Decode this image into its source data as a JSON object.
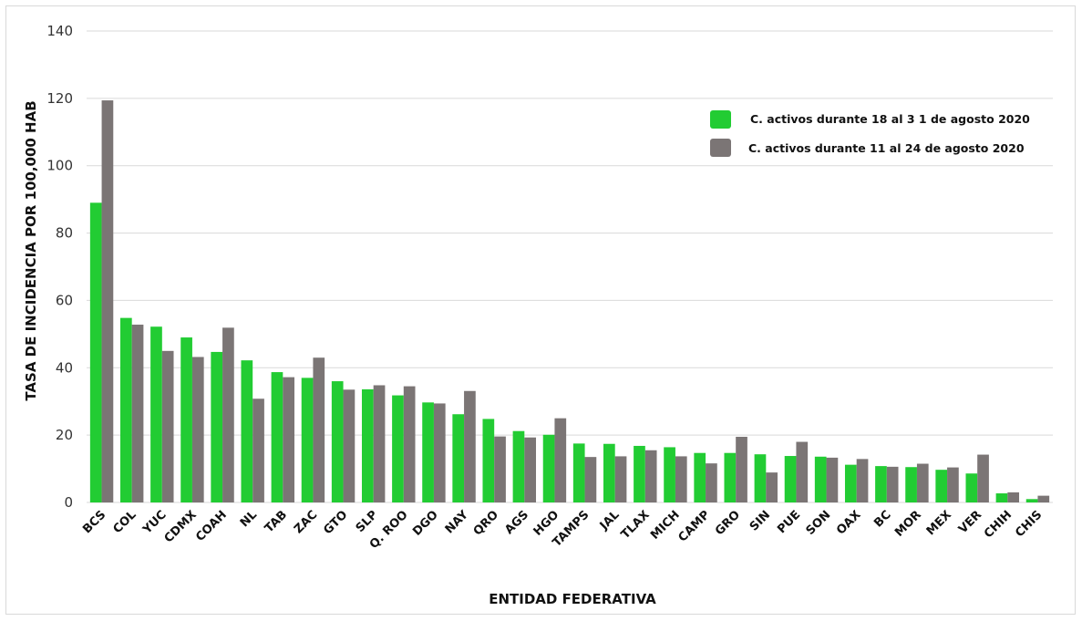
{
  "chart_data": {
    "type": "bar",
    "title": "",
    "xlabel": "ENTIDAD FEDERATIVA",
    "ylabel": "TASA DE INCIDENCIA  POR 100,000 HAB",
    "ylim": [
      0,
      140
    ],
    "yticks": [
      0,
      20,
      40,
      60,
      80,
      100,
      120,
      140
    ],
    "grid": true,
    "legend_position": "top-right",
    "categories": [
      "BCS",
      "COL",
      "YUC",
      "CDMX",
      "COAH",
      "NL",
      "TAB",
      "ZAC",
      "GTO",
      "SLP",
      "Q. ROO",
      "DGO",
      "NAY",
      "QRO",
      "AGS",
      "HGO",
      "TAMPS",
      "JAL",
      "TLAX",
      "MICH",
      "CAMP",
      "GRO",
      "SIN",
      "PUE",
      "SON",
      "OAX",
      "BC",
      "MOR",
      "MEX",
      "VER",
      "CHIH",
      "CHIS"
    ],
    "series": [
      {
        "name": "C. activos durante 18 al 3 1 de agosto 2020",
        "color": "#22cc33",
        "values": [
          89.0,
          54.8,
          52.2,
          49.0,
          44.7,
          42.2,
          38.7,
          37.0,
          36.0,
          33.6,
          31.8,
          29.7,
          26.2,
          24.8,
          21.2,
          20.1,
          17.5,
          17.4,
          16.8,
          16.4,
          14.7,
          14.7,
          14.3,
          13.8,
          13.6,
          11.2,
          10.8,
          10.5,
          9.7,
          8.6,
          2.7,
          1.0
        ]
      },
      {
        "name": "C. activos durante 11 al 24 de agosto 2020",
        "color": "#7b7575",
        "values": [
          119.4,
          52.8,
          45.0,
          43.2,
          51.9,
          30.8,
          37.2,
          43.0,
          33.5,
          34.8,
          34.5,
          29.4,
          33.1,
          19.6,
          19.3,
          25.0,
          13.5,
          13.7,
          15.5,
          13.7,
          11.6,
          19.5,
          8.9,
          18.0,
          13.3,
          12.9,
          10.6,
          11.5,
          10.4,
          14.2,
          3.0,
          2.0
        ]
      }
    ]
  }
}
